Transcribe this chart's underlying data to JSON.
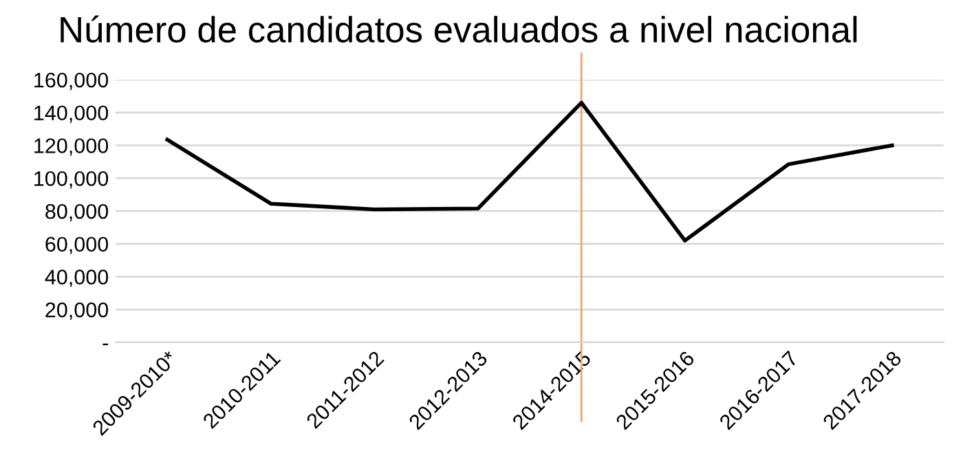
{
  "chart_data": {
    "type": "line",
    "title": "Número de candidatos evaluados a nivel nacional",
    "categories": [
      "2009-2010*",
      "2010-2011",
      "2011-2012",
      "2012-2013",
      "2014-2015",
      "2015-2016",
      "2016-2017",
      "2017-2018"
    ],
    "series": [
      {
        "color": "#000000",
        "values": [
          123500,
          84500,
          81000,
          81500,
          146000,
          62000,
          108500,
          120000
        ]
      }
    ],
    "ylim": [
      0,
      160000
    ],
    "yticks": [
      {
        "value": 0,
        "label": "-"
      },
      {
        "value": 20000,
        "label": "20,000"
      },
      {
        "value": 40000,
        "label": "40,000"
      },
      {
        "value": 60000,
        "label": "60,000"
      },
      {
        "value": 80000,
        "label": "80,000"
      },
      {
        "value": 100000,
        "label": "100,000"
      },
      {
        "value": 120000,
        "label": "120,000"
      },
      {
        "value": 140000,
        "label": "140,000"
      },
      {
        "value": 160000,
        "label": "160,000"
      }
    ],
    "ref_lines": [
      {
        "axis": "x",
        "value": "2014-2015",
        "color": "#f4a36b"
      }
    ],
    "grid": "y",
    "legend": false,
    "marker": "none",
    "line_style": "solid"
  }
}
